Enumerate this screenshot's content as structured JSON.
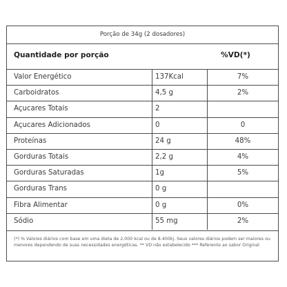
{
  "portion": "Porção de 34g (2 dosadores)",
  "header": {
    "left": "Quantidade por porção",
    "right": "%VD(*)"
  },
  "rows": [
    {
      "name": "Valor Energético",
      "amount": "137Kcal",
      "vd": "7%"
    },
    {
      "name": "Carboidratos",
      "amount": "4,5 g",
      "vd": "2%"
    },
    {
      "name": "Açucares Totais",
      "amount": "2",
      "vd": ""
    },
    {
      "name": "Açucares Adicionados",
      "amount": "0",
      "vd": "0"
    },
    {
      "name": "Proteínas",
      "amount": "24 g",
      "vd": "48%"
    },
    {
      "name": "Gorduras Totais",
      "amount": "2,2 g",
      "vd": "4%"
    },
    {
      "name": "Gorduras Saturadas",
      "amount": "1g",
      "vd": "5%"
    },
    {
      "name": "Gorduras Trans",
      "amount": "0 g",
      "vd": ""
    },
    {
      "name": "Fibra Alimentar",
      "amount": "0 g",
      "vd": "0%"
    },
    {
      "name": "Sódio",
      "amount": "55 mg",
      "vd": "2%"
    }
  ],
  "footnote": "(*) % Valores diários com base em uma dieta de 2.000 kcal ou de 8.400kj. Seus valores diários podem ser maiores ou menores dependendo de suas necessidades energéticas. ** VD não estabelecido *** Referente ao sabor Original"
}
